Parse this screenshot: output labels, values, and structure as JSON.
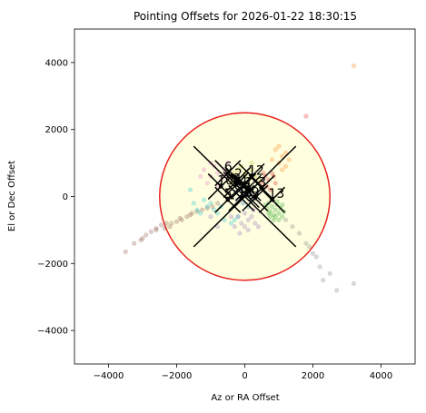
{
  "chart_data": {
    "type": "scatter",
    "title": "Pointing Offsets for 2026-01-22 18:30:15",
    "xlabel": "Az or RA Offset",
    "ylabel": "El or Dec Offset",
    "xlim": [
      -5000,
      5000
    ],
    "ylim": [
      -5000,
      5000
    ],
    "xticks": [
      -4000,
      -2000,
      0,
      2000,
      4000
    ],
    "yticks": [
      -4000,
      -2000,
      0,
      2000,
      4000
    ],
    "x_tick_labels": [
      "−4000",
      "−2000",
      "0",
      "2000",
      "4000"
    ],
    "y_tick_labels": [
      "−4000",
      "−2000",
      "0",
      "2000",
      "4000"
    ],
    "grid": false,
    "tolerance_circle": {
      "center": [
        0,
        0
      ],
      "radius": 2500,
      "edge_color": "#e8211d",
      "fill_color": "#ffffe0"
    },
    "big_cross": {
      "center": [
        0,
        0
      ],
      "half_size": 1500,
      "color": "#000000"
    },
    "antennas": [
      {
        "label": "6",
        "x": -500,
        "y": 700
      },
      {
        "label": "2",
        "x": -200,
        "y": 500
      },
      {
        "label": "12",
        "x": 200,
        "y": 600
      },
      {
        "label": "10",
        "x": -700,
        "y": 300
      },
      {
        "label": "8",
        "x": -250,
        "y": 350
      },
      {
        "label": "4",
        "x": -50,
        "y": 300
      },
      {
        "label": "1",
        "x": 100,
        "y": 250
      },
      {
        "label": "3",
        "x": 500,
        "y": 250
      },
      {
        "label": "7",
        "x": 50,
        "y": 50
      },
      {
        "label": "5",
        "x": -500,
        "y": -100
      },
      {
        "label": "11",
        "x": -100,
        "y": -50
      },
      {
        "label": "9",
        "x": 300,
        "y": -50
      },
      {
        "label": "13",
        "x": 800,
        "y": -100
      }
    ],
    "series": [
      {
        "color": "#8c564b",
        "points": [
          [
            -3500,
            -1650
          ],
          [
            -3250,
            -1400
          ],
          [
            -3050,
            -1300
          ],
          [
            -2900,
            -1150
          ],
          [
            -2750,
            -1050
          ],
          [
            -2600,
            -950
          ],
          [
            -2450,
            -850
          ],
          [
            -2300,
            -800
          ],
          [
            -2150,
            -800
          ],
          [
            -2000,
            -750
          ],
          [
            -1850,
            -700
          ],
          [
            -1700,
            -600
          ],
          [
            -1550,
            -500
          ],
          [
            -1400,
            -450
          ],
          [
            -1250,
            -400
          ],
          [
            -1100,
            -350
          ],
          [
            -950,
            -300
          ],
          [
            -800,
            -200
          ],
          [
            -2600,
            -1000
          ],
          [
            -2200,
            -900
          ],
          [
            -1900,
            -650
          ],
          [
            -1600,
            -550
          ],
          [
            -2350,
            -950
          ],
          [
            -3000,
            -1250
          ]
        ]
      },
      {
        "color": "#7f7f7f",
        "points": [
          [
            3200,
            -2600
          ],
          [
            2700,
            -2800
          ],
          [
            2300,
            -2500
          ],
          [
            2200,
            -2100
          ],
          [
            2100,
            -1800
          ],
          [
            2000,
            -1700
          ],
          [
            1900,
            -1500
          ],
          [
            1800,
            -1400
          ],
          [
            1600,
            -1100
          ],
          [
            1400,
            -900
          ],
          [
            1200,
            -700
          ],
          [
            2500,
            -2300
          ]
        ]
      },
      {
        "color": "#2ca02c",
        "points": [
          [
            700,
            -200
          ],
          [
            800,
            -300
          ],
          [
            900,
            -400
          ],
          [
            1000,
            -500
          ],
          [
            1100,
            -600
          ],
          [
            750,
            -450
          ],
          [
            850,
            -550
          ],
          [
            950,
            -250
          ],
          [
            650,
            -350
          ],
          [
            1050,
            -350
          ],
          [
            900,
            -600
          ],
          [
            1150,
            -450
          ],
          [
            800,
            -100
          ],
          [
            700,
            -500
          ],
          [
            1000,
            -700
          ],
          [
            850,
            -700
          ],
          [
            600,
            -250
          ],
          [
            950,
            -150
          ],
          [
            1100,
            -250
          ],
          [
            750,
            -600
          ]
        ]
      },
      {
        "color": "#ff7f0e",
        "points": [
          [
            3200,
            3900
          ],
          [
            1000,
            1500
          ],
          [
            1200,
            1300
          ],
          [
            1100,
            1200
          ],
          [
            900,
            1400
          ],
          [
            1300,
            1100
          ],
          [
            1000,
            1000
          ],
          [
            1200,
            900
          ],
          [
            800,
            1100
          ],
          [
            1100,
            800
          ]
        ]
      },
      {
        "color": "#d62728",
        "points": [
          [
            1800,
            2400
          ],
          [
            600,
            600
          ],
          [
            700,
            500
          ],
          [
            800,
            700
          ],
          [
            500,
            400
          ],
          [
            650,
            300
          ],
          [
            900,
            400
          ],
          [
            750,
            200
          ],
          [
            850,
            600
          ],
          [
            550,
            700
          ]
        ]
      },
      {
        "color": "#1f77b4",
        "points": [
          [
            -100,
            200
          ],
          [
            0,
            100
          ],
          [
            100,
            0
          ],
          [
            -200,
            -100
          ],
          [
            50,
            300
          ],
          [
            150,
            150
          ],
          [
            -50,
            -200
          ],
          [
            200,
            -150
          ],
          [
            -150,
            350
          ],
          [
            100,
            -300
          ],
          [
            0,
            400
          ],
          [
            -250,
            150
          ]
        ]
      },
      {
        "color": "#17becf",
        "points": [
          [
            -1600,
            200
          ],
          [
            -1500,
            -200
          ],
          [
            -1400,
            -400
          ],
          [
            -1300,
            -500
          ],
          [
            -1100,
            -300
          ],
          [
            -1000,
            -200
          ],
          [
            -900,
            -400
          ],
          [
            -800,
            -500
          ],
          [
            -1200,
            -100
          ],
          [
            -700,
            -300
          ],
          [
            -600,
            -700
          ],
          [
            -400,
            -800
          ],
          [
            -300,
            -700
          ],
          [
            -200,
            -600
          ]
        ]
      },
      {
        "color": "#9467bd",
        "points": [
          [
            -200,
            -600
          ],
          [
            -100,
            -800
          ],
          [
            0,
            -900
          ],
          [
            100,
            -700
          ],
          [
            200,
            -600
          ],
          [
            -300,
            -900
          ],
          [
            300,
            -800
          ],
          [
            0,
            -500
          ],
          [
            100,
            -1000
          ],
          [
            -150,
            -1100
          ],
          [
            250,
            -400
          ],
          [
            400,
            -900
          ],
          [
            -400,
            -600
          ],
          [
            -1000,
            -600
          ],
          [
            -800,
            -900
          ]
        ]
      },
      {
        "color": "#e377c2",
        "points": [
          [
            -1000,
            600
          ],
          [
            -800,
            700
          ],
          [
            -1200,
            800
          ],
          [
            -900,
            900
          ],
          [
            -600,
            800
          ],
          [
            -700,
            500
          ],
          [
            -1100,
            400
          ],
          [
            -500,
            1000
          ],
          [
            -1300,
            600
          ],
          [
            -800,
            300
          ],
          [
            -600,
            600
          ],
          [
            -1000,
            1000
          ]
        ]
      },
      {
        "color": "#bcbd22",
        "points": [
          [
            -200,
            500
          ],
          [
            0,
            700
          ],
          [
            200,
            800
          ],
          [
            -100,
            900
          ],
          [
            100,
            400
          ],
          [
            300,
            600
          ],
          [
            -300,
            700
          ],
          [
            400,
            500
          ],
          [
            -400,
            400
          ],
          [
            200,
            1000
          ],
          [
            0,
            600
          ],
          [
            -200,
            800
          ]
        ]
      }
    ]
  }
}
